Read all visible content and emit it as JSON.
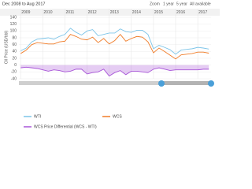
{
  "header": {
    "range": "Dec 2008 to Aug 2017",
    "zoom_label": "Zoom",
    "zoom_options": [
      "1 year",
      "5 year",
      "All available"
    ]
  },
  "chart_data": {
    "type": "line",
    "y_label": "Oil Price (USD/bbl)",
    "x": [
      2009.0,
      2009.25,
      2009.5,
      2009.75,
      2010.0,
      2010.25,
      2010.5,
      2010.75,
      2011.0,
      2011.25,
      2011.5,
      2011.75,
      2012.0,
      2012.25,
      2012.5,
      2012.75,
      2013.0,
      2013.25,
      2013.5,
      2013.75,
      2014.0,
      2014.25,
      2014.5,
      2014.75,
      2015.0,
      2015.25,
      2015.5,
      2015.75,
      2016.0,
      2016.25,
      2016.5,
      2016.75,
      2017.0,
      2017.25,
      2017.5
    ],
    "series": [
      {
        "name": "WTI",
        "color": "#7cc4e8",
        "values": [
          42,
          50,
          68,
          76,
          78,
          80,
          76,
          84,
          90,
          108,
          96,
          88,
          100,
          104,
          86,
          90,
          94,
          94,
          106,
          98,
          96,
          102,
          102,
          90,
          48,
          58,
          52,
          45,
          32,
          44,
          46,
          48,
          52,
          50,
          47
        ]
      },
      {
        "name": "WCS",
        "color": "#f07c28",
        "values": [
          34,
          44,
          60,
          66,
          64,
          62,
          62,
          68,
          70,
          90,
          84,
          76,
          74,
          82,
          66,
          78,
          62,
          72,
          90,
          70,
          78,
          84,
          82,
          68,
          36,
          50,
          40,
          29,
          18,
          30,
          32,
          34,
          38,
          38,
          35
        ]
      },
      {
        "name": "WCS Price Differential (WCS - WTI)",
        "color": "#a855d8",
        "area": true,
        "values": [
          -8,
          -6,
          -8,
          -10,
          -14,
          -18,
          -14,
          -16,
          -20,
          -18,
          -12,
          -12,
          -26,
          -22,
          -20,
          -12,
          -32,
          -22,
          -16,
          -28,
          -18,
          -18,
          -20,
          -22,
          -12,
          -8,
          -12,
          -16,
          -14,
          -14,
          -14,
          -14,
          -14,
          -12,
          -12
        ]
      }
    ],
    "xlim": [
      2008.92,
      2017.6
    ],
    "xticks": [
      2009,
      2010,
      2011,
      2012,
      2013,
      2014,
      2015,
      2016,
      2017
    ],
    "ylim": [
      -40,
      140
    ],
    "yticks": [
      -40,
      -20,
      0,
      20,
      40,
      60,
      80,
      100,
      120,
      140
    ],
    "grid": true
  }
}
